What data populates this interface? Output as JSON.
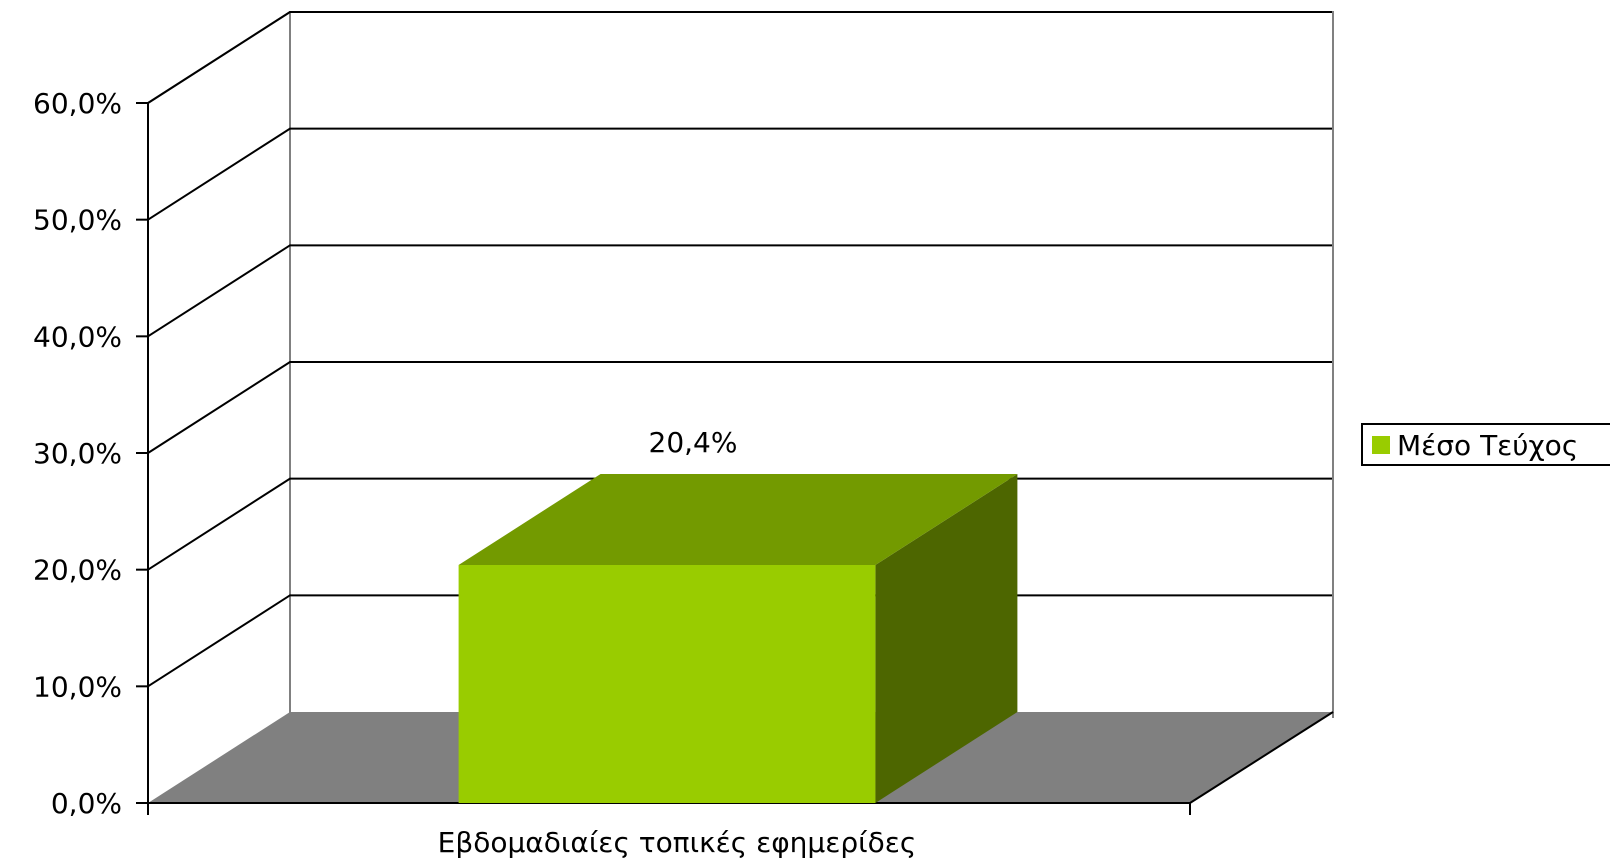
{
  "chart_data": {
    "type": "bar",
    "categories": [
      "Εβδομαδιαίες τοπικές εφημερίδες"
    ],
    "series": [
      {
        "name": "Μέσο Τεύχος",
        "values": [
          20.4
        ],
        "data_labels": [
          "20,4%"
        ]
      }
    ],
    "ylim": [
      0,
      60
    ],
    "yticks": [
      0,
      10,
      20,
      30,
      40,
      50,
      60
    ],
    "ytick_labels": [
      "0,0%",
      "10,0%",
      "20,0%",
      "30,0%",
      "40,0%",
      "50,0%",
      "60,0%"
    ],
    "grid": true,
    "legend_position": "right",
    "three_d": true,
    "colors": {
      "bar_front": "#99cc00",
      "bar_top": "#739a00",
      "bar_side": "#4d6600",
      "floor": "#808080",
      "gridline": "#000000",
      "frame": "#808080"
    }
  }
}
